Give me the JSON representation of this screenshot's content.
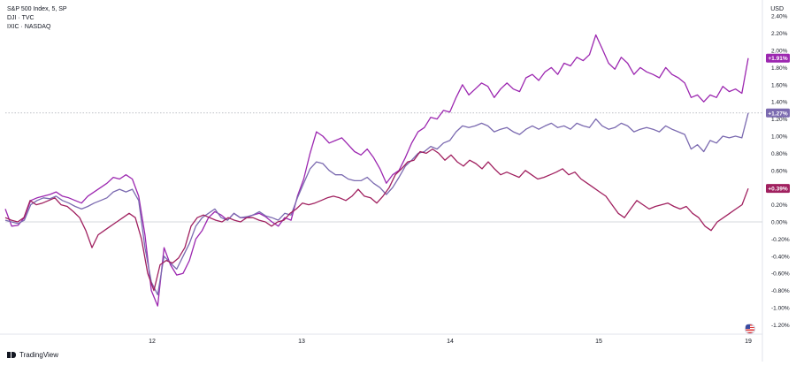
{
  "legend": [
    {
      "label": "S&P 500 Index, 5, SP"
    },
    {
      "label": "DJI · TVC"
    },
    {
      "label": "IXIC · NASDAQ"
    }
  ],
  "currency_label": "USD",
  "branding": "TradingView",
  "flag_icon": "us-flag-icon",
  "chart_data": {
    "type": "line",
    "ylabel": "",
    "xlabel": "",
    "ylim": [
      -1.3,
      2.5
    ],
    "y_ticks": [
      "2.40%",
      "2.20%",
      "2.00%",
      "1.80%",
      "1.60%",
      "1.40%",
      "1.20%",
      "1.00%",
      "0.80%",
      "0.60%",
      "0.40%",
      "0.20%",
      "0.00%",
      "-0.20%",
      "-0.40%",
      "-0.60%",
      "-0.80%",
      "-1.00%",
      "-1.20%"
    ],
    "x_ticks": [
      "12",
      "13",
      "14",
      "15",
      "19"
    ],
    "grid": false,
    "series": [
      {
        "color": "#9c27b0",
        "last_label": "+1.91%",
        "values": [
          0.15,
          -0.05,
          -0.04,
          0.05,
          0.25,
          0.28,
          0.3,
          0.32,
          0.35,
          0.3,
          0.28,
          0.25,
          0.22,
          0.3,
          0.35,
          0.4,
          0.45,
          0.52,
          0.5,
          0.55,
          0.5,
          0.3,
          -0.15,
          -0.8,
          -0.98,
          -0.3,
          -0.5,
          -0.62,
          -0.6,
          -0.45,
          -0.2,
          -0.1,
          0.05,
          0.12,
          0.08,
          0.02,
          0.1,
          0.05,
          0.05,
          0.08,
          0.1,
          0.06,
          0.0,
          -0.05,
          0.05,
          0.02,
          0.3,
          0.5,
          0.8,
          1.05,
          1.0,
          0.92,
          0.95,
          0.98,
          0.9,
          0.82,
          0.78,
          0.85,
          0.75,
          0.62,
          0.45,
          0.55,
          0.6,
          0.75,
          0.92,
          1.05,
          1.1,
          1.22,
          1.2,
          1.3,
          1.28,
          1.45,
          1.6,
          1.48,
          1.55,
          1.62,
          1.58,
          1.45,
          1.55,
          1.62,
          1.55,
          1.52,
          1.68,
          1.72,
          1.65,
          1.75,
          1.8,
          1.72,
          1.85,
          1.82,
          1.92,
          1.88,
          1.95,
          2.18,
          2.02,
          1.85,
          1.78,
          1.92,
          1.85,
          1.72,
          1.8,
          1.75,
          1.72,
          1.68,
          1.8,
          1.72,
          1.68,
          1.62,
          1.45,
          1.48,
          1.4,
          1.48,
          1.45,
          1.58,
          1.52,
          1.55,
          1.5,
          1.91
        ]
      },
      {
        "color": "#7b6ab0",
        "last_label": "+1.27%",
        "values": [
          0.02,
          0.0,
          -0.02,
          0.02,
          0.2,
          0.25,
          0.28,
          0.27,
          0.3,
          0.25,
          0.22,
          0.18,
          0.15,
          0.18,
          0.22,
          0.25,
          0.28,
          0.35,
          0.38,
          0.35,
          0.38,
          0.25,
          -0.3,
          -0.7,
          -0.85,
          -0.4,
          -0.48,
          -0.55,
          -0.4,
          -0.25,
          -0.05,
          0.05,
          0.1,
          0.15,
          0.05,
          0.02,
          0.1,
          0.05,
          0.06,
          0.08,
          0.12,
          0.07,
          0.05,
          0.02,
          0.1,
          0.08,
          0.28,
          0.45,
          0.62,
          0.7,
          0.68,
          0.6,
          0.55,
          0.55,
          0.5,
          0.48,
          0.48,
          0.52,
          0.45,
          0.4,
          0.32,
          0.4,
          0.52,
          0.65,
          0.72,
          0.8,
          0.82,
          0.88,
          0.85,
          0.92,
          0.95,
          1.05,
          1.12,
          1.1,
          1.12,
          1.15,
          1.12,
          1.05,
          1.08,
          1.1,
          1.05,
          1.02,
          1.08,
          1.12,
          1.08,
          1.12,
          1.15,
          1.1,
          1.12,
          1.08,
          1.15,
          1.12,
          1.1,
          1.2,
          1.12,
          1.08,
          1.1,
          1.15,
          1.12,
          1.05,
          1.08,
          1.1,
          1.08,
          1.05,
          1.12,
          1.08,
          1.05,
          1.02,
          0.85,
          0.9,
          0.82,
          0.95,
          0.92,
          1.0,
          0.98,
          1.0,
          0.98,
          1.27
        ]
      },
      {
        "color": "#a0205f",
        "last_label": "+0.39%",
        "values": [
          0.05,
          0.02,
          0.0,
          0.05,
          0.25,
          0.2,
          0.22,
          0.25,
          0.28,
          0.2,
          0.18,
          0.12,
          0.05,
          -0.1,
          -0.3,
          -0.15,
          -0.1,
          -0.05,
          0.0,
          0.05,
          0.1,
          0.05,
          -0.2,
          -0.6,
          -0.8,
          -0.5,
          -0.45,
          -0.48,
          -0.42,
          -0.3,
          -0.05,
          0.05,
          0.08,
          0.05,
          0.02,
          0.0,
          0.05,
          0.02,
          0.0,
          0.05,
          0.05,
          0.02,
          0.0,
          -0.05,
          0.0,
          0.02,
          0.1,
          0.15,
          0.22,
          0.2,
          0.22,
          0.25,
          0.28,
          0.3,
          0.28,
          0.25,
          0.3,
          0.38,
          0.3,
          0.28,
          0.22,
          0.3,
          0.4,
          0.55,
          0.62,
          0.7,
          0.72,
          0.82,
          0.8,
          0.85,
          0.8,
          0.72,
          0.78,
          0.7,
          0.65,
          0.72,
          0.68,
          0.62,
          0.7,
          0.62,
          0.55,
          0.58,
          0.55,
          0.52,
          0.6,
          0.55,
          0.5,
          0.52,
          0.55,
          0.58,
          0.62,
          0.55,
          0.58,
          0.5,
          0.45,
          0.4,
          0.35,
          0.3,
          0.2,
          0.1,
          0.05,
          0.15,
          0.25,
          0.2,
          0.15,
          0.18,
          0.2,
          0.22,
          0.18,
          0.15,
          0.18,
          0.1,
          0.05,
          -0.05,
          -0.1,
          0.0,
          0.05,
          0.1,
          0.15,
          0.2,
          0.39
        ]
      }
    ]
  }
}
